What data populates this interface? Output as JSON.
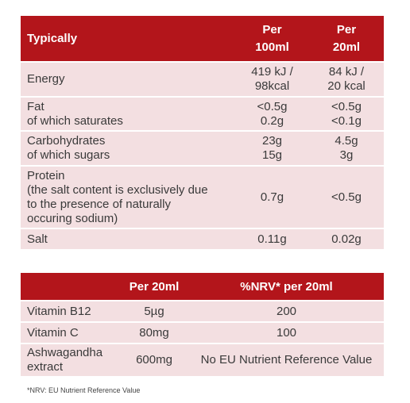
{
  "table1": {
    "header": {
      "col1": "Typically",
      "col2": "Per\n100ml",
      "col3": "Per\n20ml"
    },
    "rows": [
      {
        "label": "Energy",
        "v100": "419 kJ /\n98kcal",
        "v20": "84 kJ /\n20 kcal"
      },
      {
        "label": "Fat\nof which saturates",
        "v100": "<0.5g\n0.2g",
        "v20": "<0.5g\n<0.1g"
      },
      {
        "label": "Carbohydrates\nof which sugars",
        "v100": "23g\n15g",
        "v20": "4.5g\n3g"
      },
      {
        "label": "Protein\n(the salt content is exclusively due\nto the presence of naturally\noccuring sodium)",
        "v100": "0.7g",
        "v20": "<0.5g"
      },
      {
        "label": "Salt",
        "v100": "0.11g",
        "v20": "0.02g"
      }
    ]
  },
  "table2": {
    "header": {
      "col1": "",
      "col2": "Per 20ml",
      "col3": "%NRV* per 20ml"
    },
    "rows": [
      {
        "label": "Vitamin B12",
        "amount": "5µg",
        "nrv": "200"
      },
      {
        "label": "Vitamin C",
        "amount": "80mg",
        "nrv": "100"
      },
      {
        "label": "Ashwagandha\nextract",
        "amount": "600mg",
        "nrv": "No EU Nutrient Reference Value"
      }
    ]
  },
  "footnote": "*NRV: EU Nutrient Reference Value"
}
